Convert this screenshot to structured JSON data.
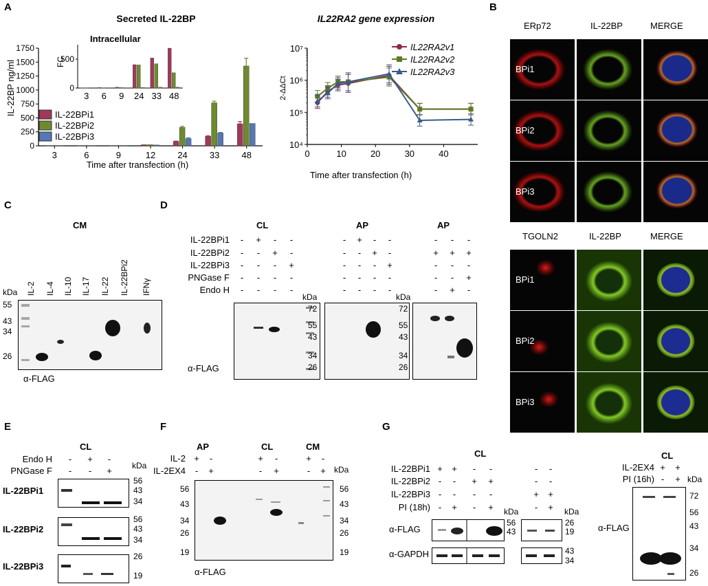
{
  "panels": {
    "A": "A",
    "B": "B",
    "C": "C",
    "D": "D",
    "E": "E",
    "F": "F",
    "G": "G"
  },
  "chart_data": [
    {
      "type": "bar",
      "title": "Secreted IL-22BP",
      "ylabel": "IL-22BP ng/ml",
      "xlabel": "Time after transfection (h)",
      "categories": [
        "3",
        "6",
        "9",
        "12",
        "24",
        "33",
        "48"
      ],
      "yticks": [
        "0",
        "250",
        "500",
        "750",
        "1000",
        "1250",
        "1500",
        "1750"
      ],
      "ylim": [
        0,
        1750
      ],
      "series": [
        {
          "name": "IL-22BPi1",
          "color": "#a0385a",
          "values": [
            5,
            5,
            5,
            20,
            80,
            170,
            395
          ],
          "errors": [
            0,
            0,
            0,
            0,
            5,
            10,
            40
          ]
        },
        {
          "name": "IL-22BPi2",
          "color": "#6e8a2c",
          "values": [
            5,
            5,
            5,
            20,
            330,
            770,
            1430
          ],
          "errors": [
            0,
            0,
            0,
            0,
            20,
            30,
            140
          ]
        },
        {
          "name": "IL-22BPi3",
          "color": "#5577b3",
          "values": [
            5,
            5,
            5,
            15,
            130,
            230,
            400
          ],
          "errors": [
            0,
            0,
            0,
            0,
            15,
            10,
            0
          ]
        }
      ]
    },
    {
      "type": "bar",
      "title": "Intracellular",
      "ylabel": "FC",
      "categories": [
        "3",
        "6",
        "9",
        "24",
        "33",
        "48"
      ],
      "yticks": [
        "0",
        "500"
      ],
      "ylim": [
        0,
        750
      ],
      "series": [
        {
          "name": "IL-22BPi1",
          "color": "#a0385a",
          "values": [
            5,
            10,
            15,
            405,
            520,
            690
          ]
        },
        {
          "name": "IL-22BPi2",
          "color": "#6e8a2c",
          "values": [
            5,
            5,
            10,
            400,
            420,
            265
          ]
        },
        {
          "name": "IL-22BPi3",
          "color": "#5577b3",
          "values": [
            0,
            0,
            0,
            10,
            15,
            15
          ]
        }
      ]
    },
    {
      "type": "line",
      "title": "IL22RA2 gene expression",
      "ylabel": "2-ΔΔCt",
      "xlabel": "Time after transfection (h)",
      "xticks": [
        "0",
        "10",
        "20",
        "30",
        "40"
      ],
      "yticks": [
        "10⁴",
        "10⁵",
        "10⁶",
        "10⁷"
      ],
      "ylim": [
        4,
        7
      ],
      "xlim": [
        0,
        50
      ],
      "series": [
        {
          "name": "IL22RA2v1",
          "color": "#8b2a52",
          "marker": "circle",
          "x": [
            3,
            6,
            9,
            12,
            24,
            33,
            48
          ],
          "y": [
            5.3,
            5.65,
            5.85,
            5.9,
            6.15,
            5.1,
            5.1
          ]
        },
        {
          "name": "IL22RA2v2",
          "color": "#5f7a23",
          "marker": "square",
          "x": [
            3,
            6,
            9,
            12,
            24,
            33,
            48
          ],
          "y": [
            5.5,
            5.75,
            5.95,
            5.95,
            6.1,
            5.1,
            5.1
          ]
        },
        {
          "name": "IL22RA2v3",
          "color": "#3a5a8a",
          "marker": "triangle",
          "x": [
            3,
            6,
            9,
            12,
            24,
            33,
            48
          ],
          "y": [
            5.35,
            5.6,
            5.9,
            5.95,
            6.2,
            4.75,
            4.78
          ]
        }
      ]
    }
  ],
  "panelB": {
    "top_headers": [
      "ERp72",
      "IL-22BP",
      "MERGE"
    ],
    "bottom_headers": [
      "TGOLN2",
      "IL-22BP",
      "MERGE"
    ],
    "rows": [
      "BPi1",
      "BPi2",
      "BPi3"
    ]
  },
  "panelC": {
    "title": "CM",
    "lanes": [
      "IL-2",
      "IL-4",
      "IL-10",
      "IL-17",
      "IL-22",
      "IL-22BPi2",
      "IFNγ"
    ],
    "kda": "kDa",
    "markers": [
      "55",
      "43",
      "34",
      "26"
    ],
    "antibody": "α-FLAG"
  },
  "panelD": {
    "titles": [
      "CL",
      "AP",
      "AP"
    ],
    "rows": [
      "IL-22BPi1",
      "IL-22BPi2",
      "IL-22BPi3",
      "PNGase F",
      "Endo H"
    ],
    "markers_a": [
      "72",
      "55",
      "43",
      "34",
      "26"
    ],
    "markers_b": [
      "72",
      "55",
      "43",
      "34",
      "26"
    ],
    "kda": "kDa",
    "antibody": "α-FLAG"
  },
  "panelE": {
    "title": "CL",
    "rows": [
      "Endo H",
      "PNGase F"
    ],
    "blots": [
      {
        "label": "IL-22BPi1",
        "markers": [
          "56",
          "43",
          "34"
        ]
      },
      {
        "label": "IL-22BPi2",
        "markers": [
          "56",
          "43",
          "34"
        ]
      },
      {
        "label": "IL-22BPi3",
        "markers": [
          "26",
          "19"
        ]
      }
    ],
    "kda": "kDa"
  },
  "panelF": {
    "titles": [
      "AP",
      "CL",
      "CM"
    ],
    "rows": [
      "IL-2",
      "IL-2EX4"
    ],
    "markers": [
      "56",
      "43",
      "34",
      "26",
      "19"
    ],
    "kda": "kDa",
    "antibody": "α-FLAG"
  },
  "panelG": {
    "title": "CL",
    "rows": [
      "IL-22BPi1",
      "IL-22BPi2",
      "IL-22BPi3",
      "PI (18h)"
    ],
    "antibodies": [
      "α-FLAG",
      "α-GAPDH"
    ],
    "markers_flag": [
      "56",
      "43"
    ],
    "markers_flag2": [
      "26",
      "19"
    ],
    "markers_gapdh": [
      "43",
      "34"
    ],
    "kda": "kDa",
    "right": {
      "title": "CL",
      "rows": [
        "IL-2EX4",
        "PI (16h)"
      ],
      "markers": [
        "72",
        "56",
        "43",
        "34",
        "26"
      ],
      "kda": "kDa",
      "antibody": "α-FLAG"
    }
  }
}
